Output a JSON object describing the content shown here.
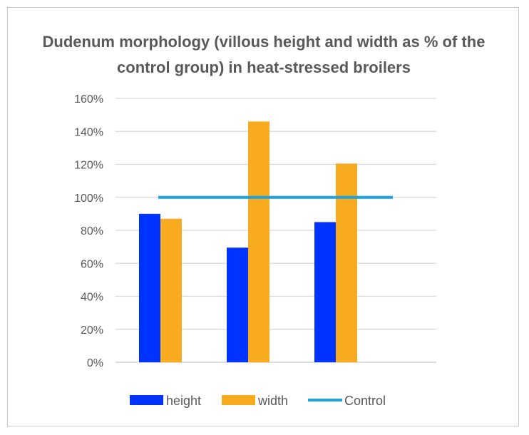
{
  "chart_data": {
    "type": "bar",
    "title_lines": [
      "Dudenum morphology (villous height and width as % of the",
      "control group) in heat-stressed broilers"
    ],
    "categories": [
      "",
      "",
      ""
    ],
    "series": [
      {
        "name": "height",
        "values": [
          90,
          69.5,
          85
        ],
        "color": "#0033ff"
      },
      {
        "name": "width",
        "values": [
          87,
          146,
          120.5
        ],
        "color": "#f8ab1e"
      }
    ],
    "reference_line": {
      "name": "Control",
      "value": 100,
      "color": "#1ca3e2"
    },
    "y_ticks": [
      "0%",
      "20%",
      "40%",
      "60%",
      "80%",
      "100%",
      "120%",
      "140%",
      "160%"
    ],
    "ylim": [
      0,
      160
    ],
    "grid": true,
    "legend_position": "bottom"
  }
}
